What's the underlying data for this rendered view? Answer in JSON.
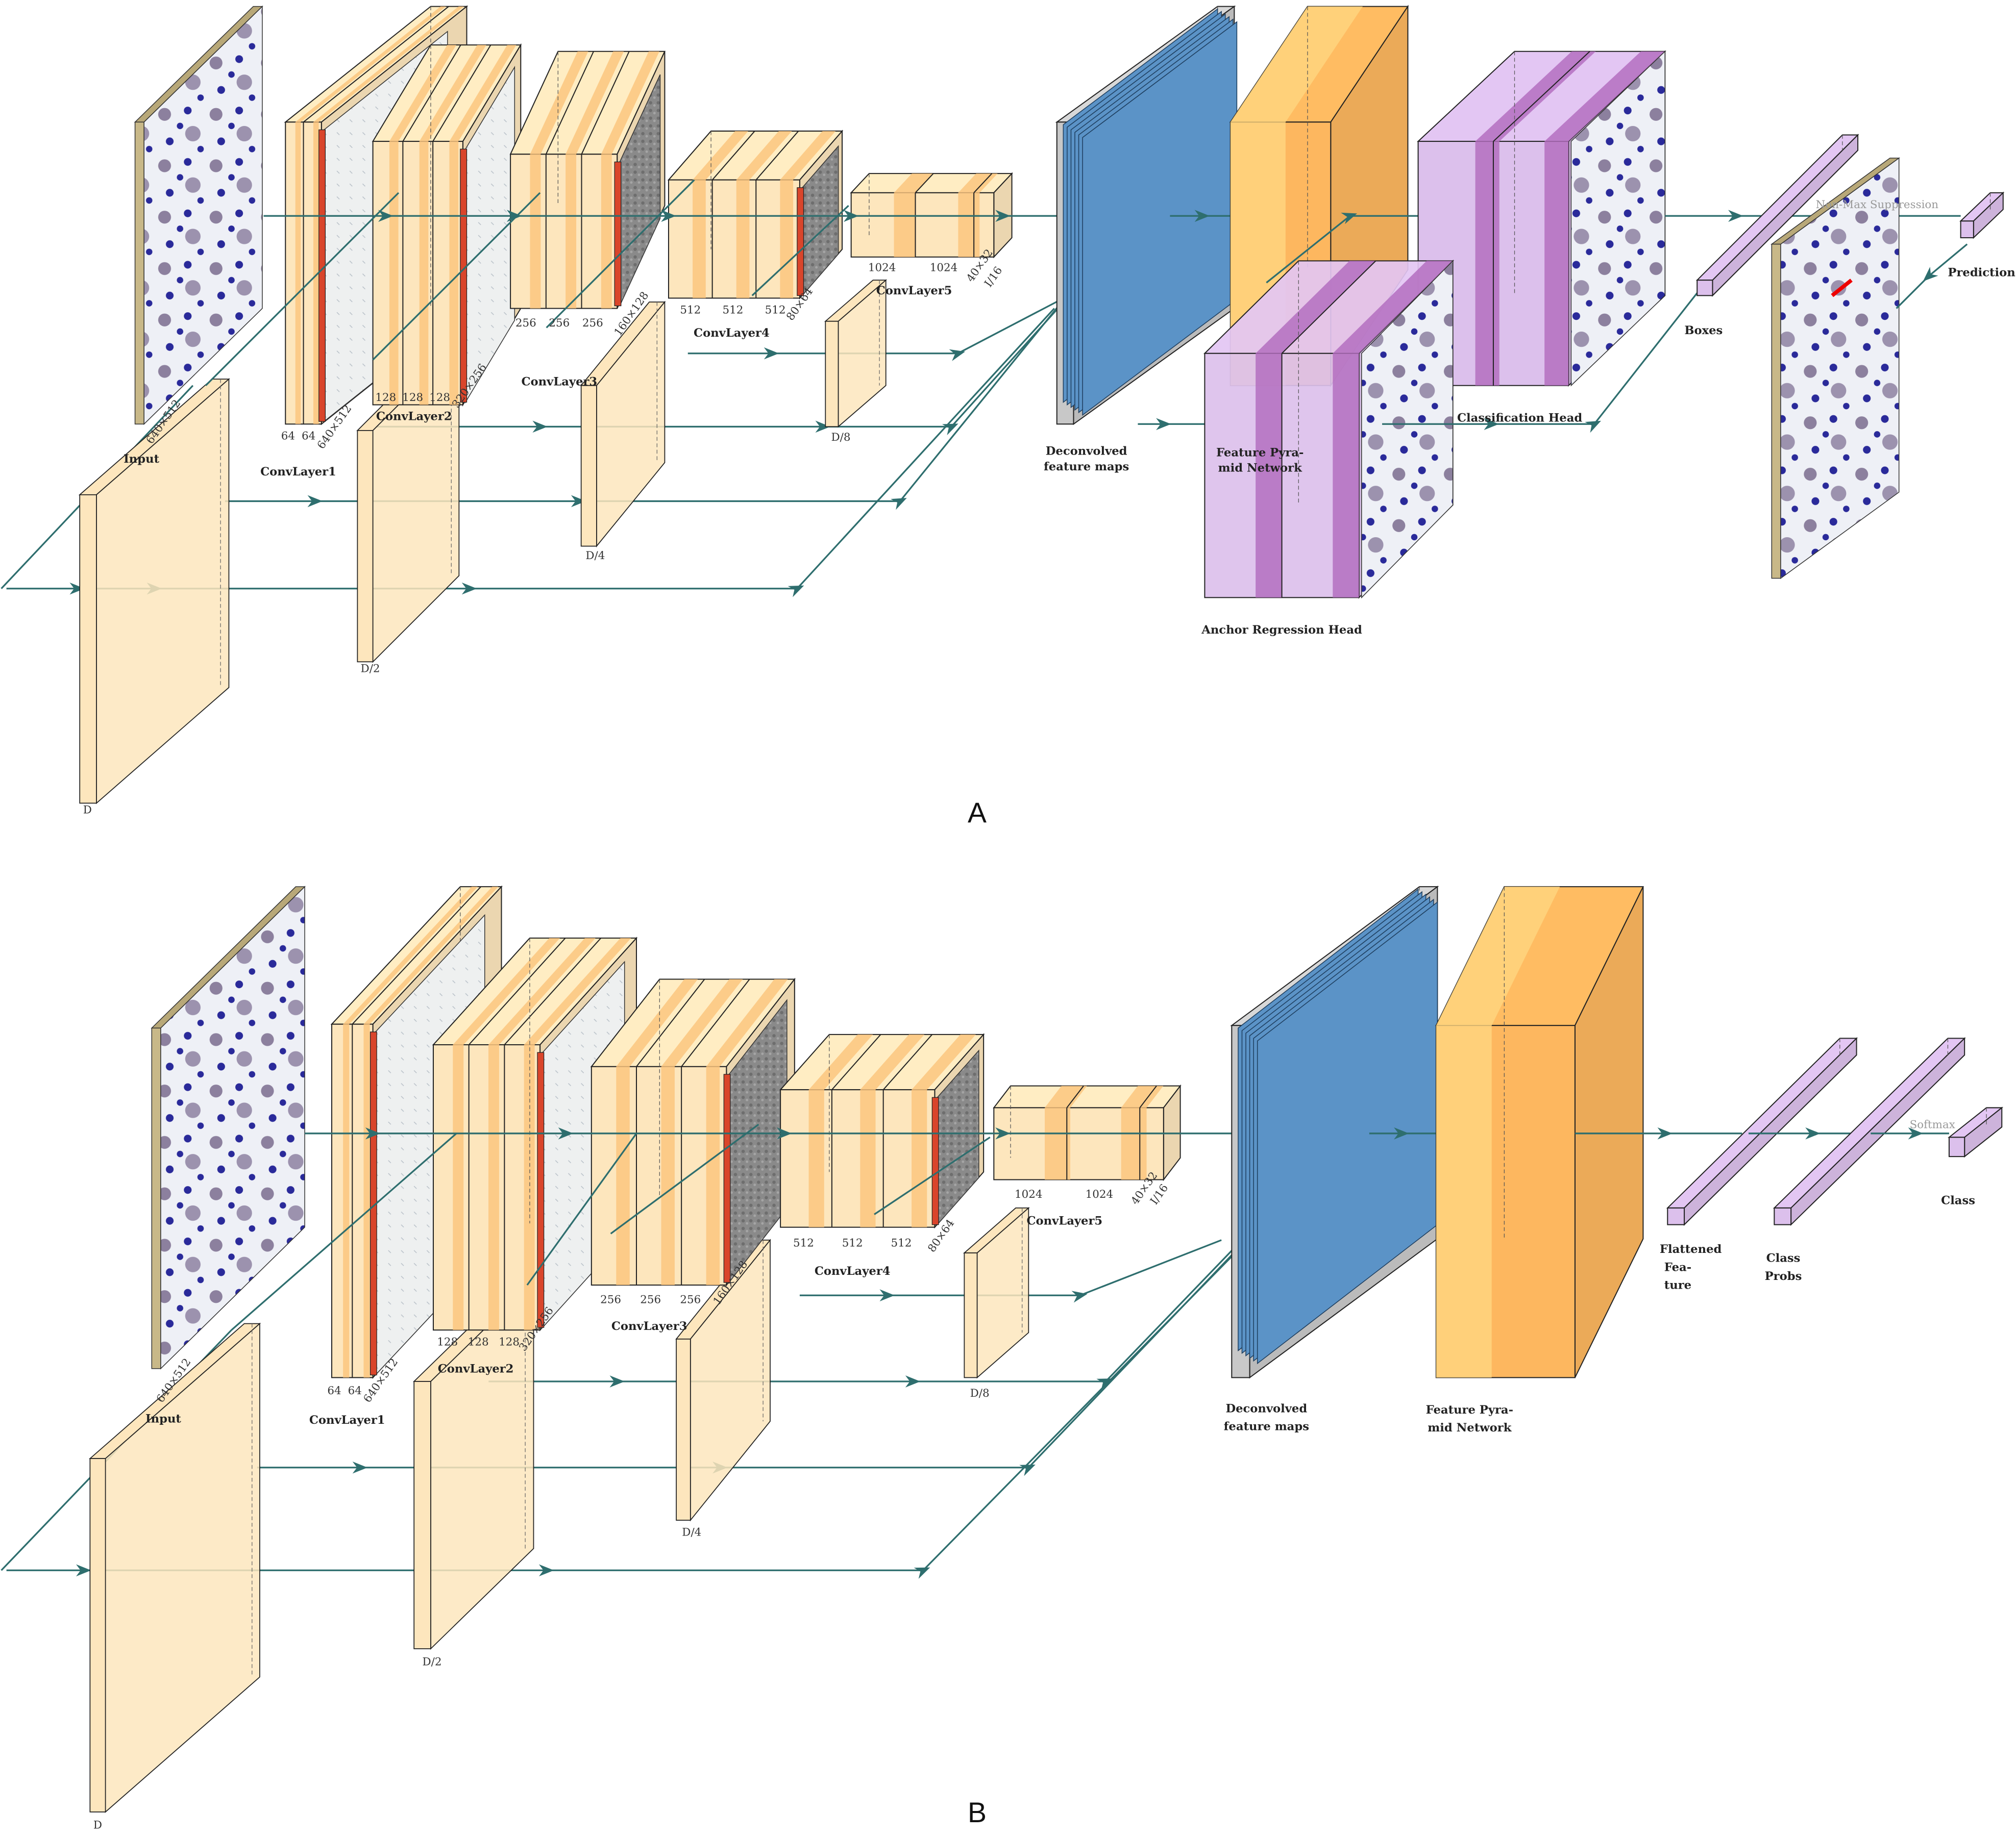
{
  "colors": {
    "conv_light": "#fde6bd",
    "conv_stripe": "#fcc57f",
    "relu_red": "#d9452b",
    "deconv_blue": "#5b93c7",
    "deconv_gray": "#c8c8c8",
    "fpn_orange": "#fdb75f",
    "fpn_light": "#ffd57f",
    "head_purple": "#dcc0ec",
    "head_stripe": "#b46ec0",
    "arrow_teal": "#2e6e6e",
    "cell_blue": "#2a2a9a",
    "cell_purple": "#6a5a80"
  },
  "panel_a": {
    "label": "A",
    "input": {
      "label": "Input",
      "size": "640×512"
    },
    "conv1": {
      "label": "ConvLayer1",
      "channels": [
        "64",
        "64"
      ],
      "size": "640×512"
    },
    "conv2": {
      "label": "ConvLayer2",
      "channels": [
        "128",
        "128",
        "128"
      ],
      "size": "320×256"
    },
    "conv3": {
      "label": "ConvLayer3",
      "channels": [
        "256",
        "256",
        "256"
      ],
      "size": "160×128"
    },
    "conv4": {
      "label": "ConvLayer4",
      "channels": [
        "512",
        "512",
        "512"
      ],
      "size": "80×64"
    },
    "conv5": {
      "label": "ConvLayer5",
      "channels": [
        "1024",
        "1024"
      ],
      "size": "40×32",
      "scale": "I/16"
    },
    "d_labels": [
      "D",
      "D/2",
      "D/4",
      "D/8"
    ],
    "deconv": {
      "line1": "Deconvolved",
      "line2": "feature maps"
    },
    "fpn": {
      "line1": "Feature Pyra-",
      "line2": "mid Network"
    },
    "classification_head": "Classification Head",
    "anchor_head": "Anchor Regression Head",
    "boxes": "Boxes",
    "nms": "Non-Max Suppression",
    "prediction": "Prediction"
  },
  "panel_b": {
    "label": "B",
    "input": {
      "label": "Input",
      "size": "640×512"
    },
    "conv1": {
      "label": "ConvLayer1",
      "channels": [
        "64",
        "64"
      ],
      "size": "640×512"
    },
    "conv2": {
      "label": "ConvLayer2",
      "channels": [
        "128",
        "128",
        "128"
      ],
      "size": "320×256"
    },
    "conv3": {
      "label": "ConvLayer3",
      "channels": [
        "256",
        "256",
        "256"
      ],
      "size": "160×128"
    },
    "conv4": {
      "label": "ConvLayer4",
      "channels": [
        "512",
        "512",
        "512"
      ],
      "size": "80×64"
    },
    "conv5": {
      "label": "ConvLayer5",
      "channels": [
        "1024",
        "1024"
      ],
      "size": "40×32",
      "scale": "I/16"
    },
    "d_labels": [
      "D",
      "D/2",
      "D/4",
      "D/8"
    ],
    "deconv": {
      "line1": "Deconvolved",
      "line2": "feature maps"
    },
    "fpn": {
      "line1": "Feature Pyra-",
      "line2": "mid Network"
    },
    "flattened": {
      "line1": "Flattened",
      "line2": "Fea-",
      "line3": "ture"
    },
    "class_probs": {
      "line1": "Class",
      "line2": "Probs"
    },
    "softmax": "Softmax",
    "class": "Class"
  }
}
